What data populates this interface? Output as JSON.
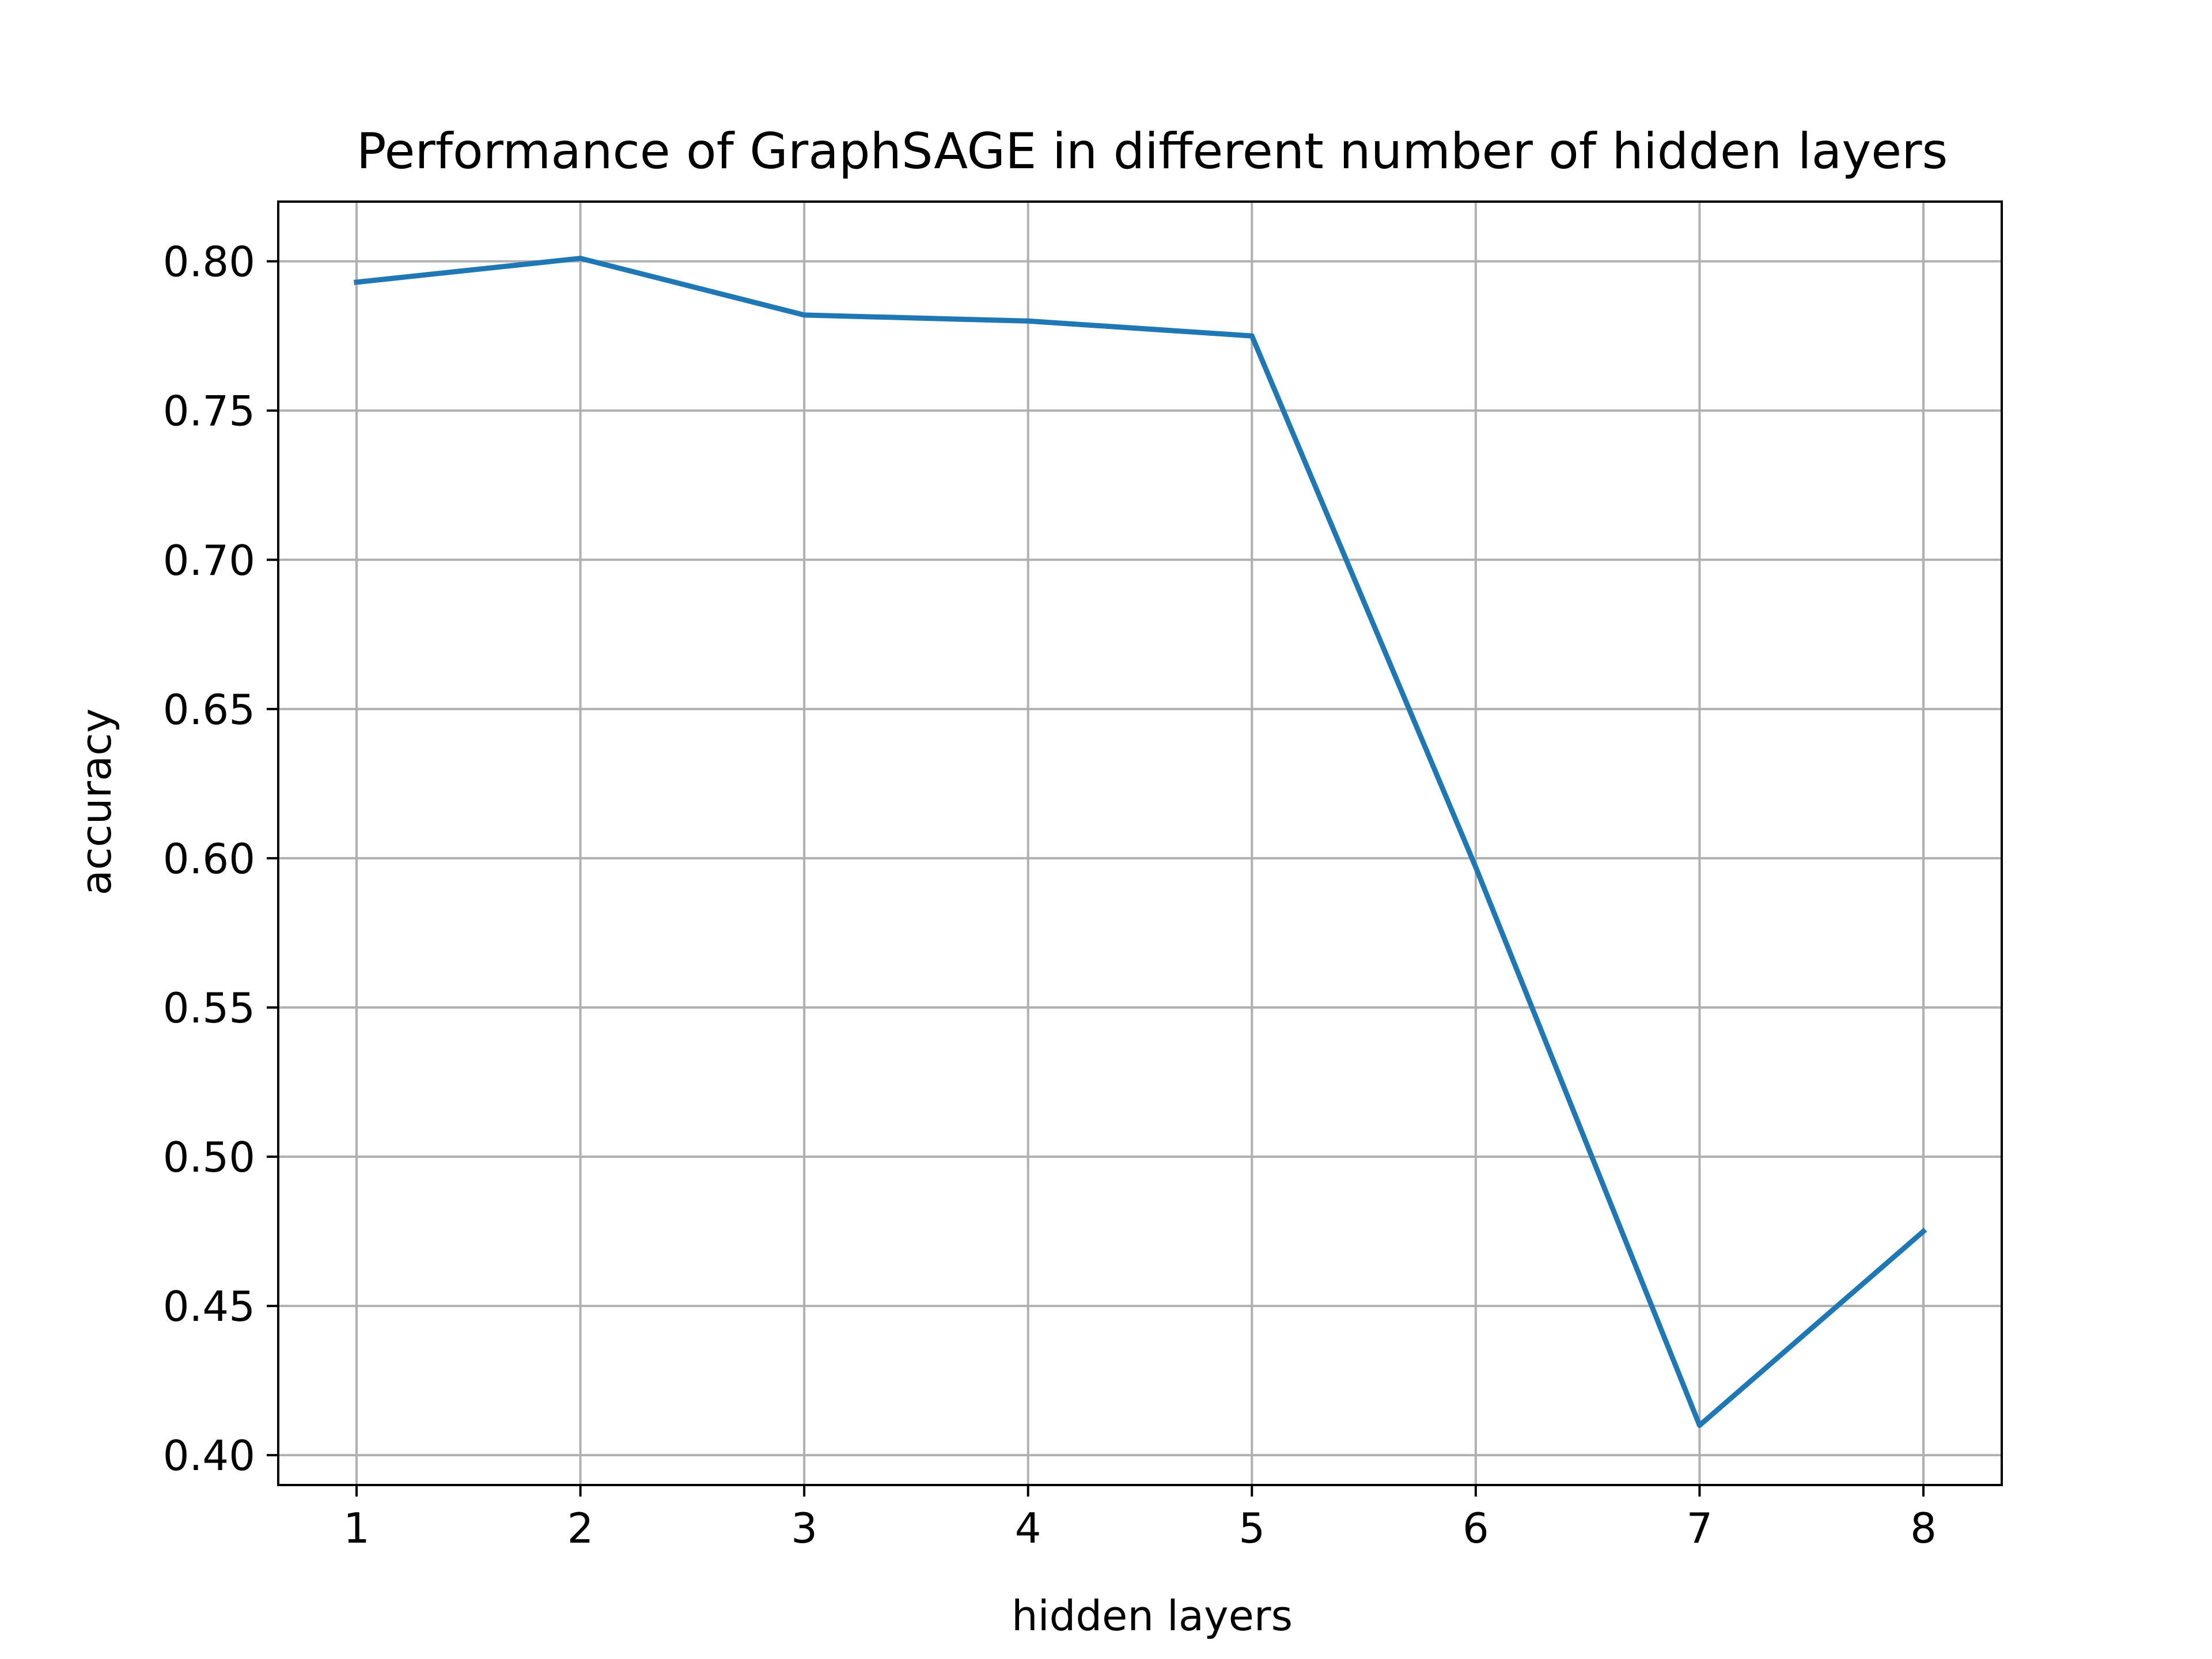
{
  "chart_data": {
    "type": "line",
    "title": "Performance of GraphSAGE in different number of hidden layers",
    "xlabel": "hidden layers",
    "ylabel": "accuracy",
    "x": [
      1,
      2,
      3,
      4,
      5,
      6,
      7,
      8
    ],
    "series": [
      {
        "values": [
          0.793,
          0.801,
          0.782,
          0.78,
          0.775,
          0.597,
          0.41,
          0.475
        ]
      }
    ],
    "xlim": [
      0.65,
      8.35
    ],
    "ylim": [
      0.39,
      0.82
    ],
    "xticks": [
      1,
      2,
      3,
      4,
      5,
      6,
      7,
      8
    ],
    "yticks": [
      0.4,
      0.45,
      0.5,
      0.55,
      0.6,
      0.65,
      0.7,
      0.75,
      0.8
    ],
    "ytick_labels": [
      "0.40",
      "0.45",
      "0.50",
      "0.55",
      "0.60",
      "0.65",
      "0.70",
      "0.75",
      "0.80"
    ],
    "grid": true,
    "colors": {
      "line": "#1f77b4",
      "grid": "#b0b0b0",
      "axes": "#000000"
    }
  }
}
